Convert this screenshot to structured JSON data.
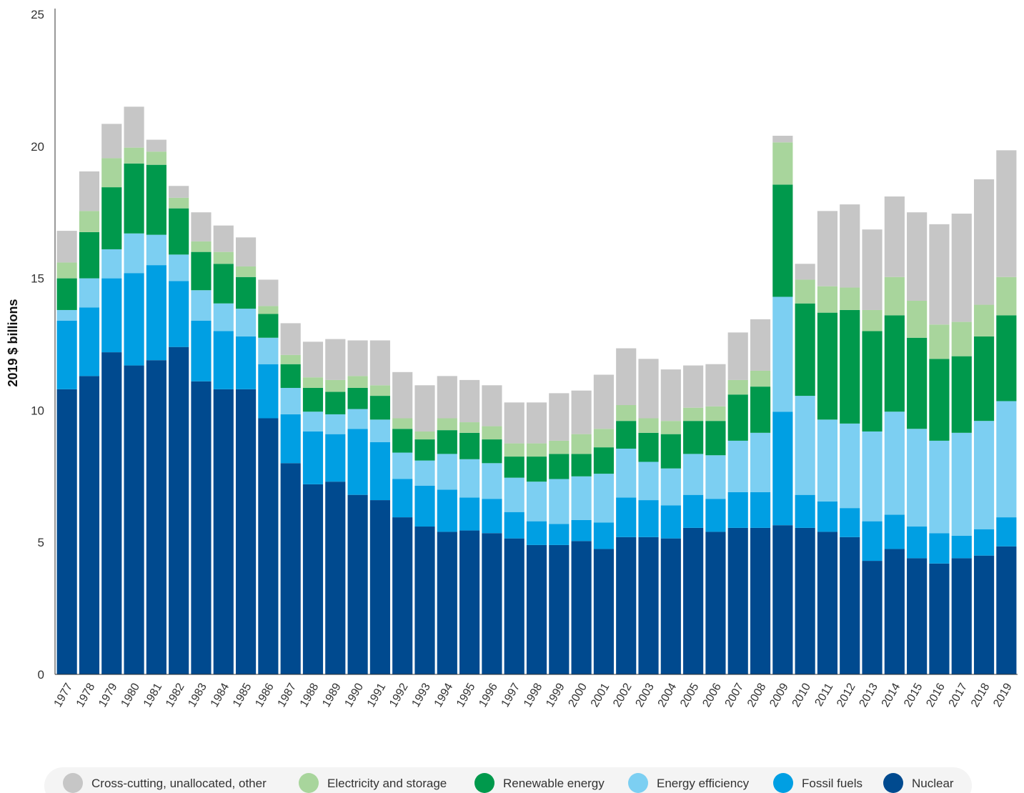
{
  "chart_data": {
    "type": "stacked_bar",
    "y_label": "2019 $ billions",
    "categories": [
      "1977",
      "1978",
      "1979",
      "1980",
      "1981",
      "1982",
      "1983",
      "1984",
      "1985",
      "1986",
      "1987",
      "1988",
      "1989",
      "1990",
      "1991",
      "1992",
      "1993",
      "1994",
      "1995",
      "1996",
      "1997",
      "1998",
      "1999",
      "2000",
      "2001",
      "2002",
      "2003",
      "2004",
      "2005",
      "2006",
      "2007",
      "2008",
      "2009",
      "2010",
      "2011",
      "2012",
      "2013",
      "2014",
      "2015",
      "2016",
      "2017",
      "2018",
      "2019"
    ],
    "ylim": [
      0,
      25
    ],
    "yticks": [
      0,
      5,
      10,
      15,
      20,
      25
    ],
    "grid": false,
    "series": [
      {
        "name": "Nuclear",
        "color": "#004a8f",
        "values": [
          10.8,
          11.3,
          12.2,
          11.7,
          11.9,
          12.4,
          11.1,
          10.8,
          10.8,
          9.7,
          8.0,
          7.2,
          7.3,
          6.8,
          6.6,
          5.95,
          5.6,
          5.4,
          5.45,
          5.35,
          5.15,
          4.9,
          4.9,
          5.05,
          4.75,
          5.2,
          5.2,
          5.15,
          5.55,
          5.4,
          5.55,
          5.55,
          5.65,
          5.55,
          5.4,
          5.2,
          4.3,
          4.75,
          4.4,
          4.2,
          4.4,
          4.5,
          4.85
        ]
      },
      {
        "name": "Fossil fuels",
        "color": "#009fe3",
        "values": [
          2.6,
          2.6,
          2.8,
          3.5,
          3.6,
          2.5,
          2.3,
          2.2,
          2.0,
          2.05,
          1.85,
          2.0,
          1.8,
          2.5,
          2.2,
          1.45,
          1.55,
          1.6,
          1.25,
          1.3,
          1.0,
          0.9,
          0.8,
          0.8,
          1.0,
          1.5,
          1.4,
          1.25,
          1.25,
          1.25,
          1.35,
          1.35,
          4.3,
          1.25,
          1.15,
          1.1,
          1.5,
          1.3,
          1.2,
          1.15,
          0.85,
          1.0,
          1.1
        ]
      },
      {
        "name": "Energy efficiency",
        "color": "#7ccff2",
        "values": [
          0.4,
          1.1,
          1.1,
          1.5,
          1.15,
          1.0,
          1.15,
          1.05,
          1.05,
          1.0,
          1.0,
          0.75,
          0.75,
          0.75,
          0.85,
          1.0,
          0.95,
          1.35,
          1.45,
          1.35,
          1.3,
          1.5,
          1.7,
          1.65,
          1.85,
          1.85,
          1.45,
          1.4,
          1.55,
          1.65,
          1.95,
          2.25,
          4.35,
          3.75,
          3.1,
          3.2,
          3.4,
          3.9,
          3.7,
          3.5,
          3.9,
          4.1,
          4.4
        ]
      },
      {
        "name": "Renewable energy",
        "color": "#00994c",
        "values": [
          1.2,
          1.75,
          2.35,
          2.65,
          2.65,
          1.75,
          1.45,
          1.5,
          1.2,
          0.9,
          0.9,
          0.9,
          0.85,
          0.8,
          0.9,
          0.9,
          0.8,
          0.9,
          1.0,
          0.9,
          0.8,
          0.95,
          0.95,
          0.85,
          1.0,
          1.05,
          1.1,
          1.3,
          1.25,
          1.3,
          1.75,
          1.75,
          4.25,
          3.5,
          4.05,
          4.3,
          3.8,
          3.65,
          3.45,
          3.1,
          2.9,
          3.2,
          3.25
        ]
      },
      {
        "name": "Electricity and storage",
        "color": "#a8d59c",
        "values": [
          0.6,
          0.8,
          1.1,
          0.6,
          0.5,
          0.4,
          0.4,
          0.45,
          0.4,
          0.3,
          0.35,
          0.4,
          0.45,
          0.45,
          0.4,
          0.4,
          0.3,
          0.45,
          0.4,
          0.5,
          0.5,
          0.5,
          0.5,
          0.75,
          0.7,
          0.6,
          0.55,
          0.5,
          0.5,
          0.55,
          0.55,
          0.6,
          1.6,
          0.9,
          1.0,
          0.85,
          0.8,
          1.45,
          1.4,
          1.3,
          1.3,
          1.2,
          1.45
        ]
      },
      {
        "name": "Cross-cutting, unallocated, other",
        "color": "#c6c6c6",
        "values": [
          1.2,
          1.5,
          1.3,
          1.55,
          0.45,
          0.45,
          1.1,
          1.0,
          1.1,
          1.0,
          1.2,
          1.35,
          1.55,
          1.35,
          1.7,
          1.75,
          1.75,
          1.6,
          1.6,
          1.55,
          1.55,
          1.55,
          1.8,
          1.65,
          2.05,
          2.15,
          2.25,
          1.95,
          1.6,
          1.6,
          1.8,
          1.95,
          0.25,
          0.6,
          2.85,
          3.15,
          3.05,
          3.05,
          3.35,
          3.8,
          4.1,
          4.75,
          4.8
        ]
      }
    ]
  }
}
